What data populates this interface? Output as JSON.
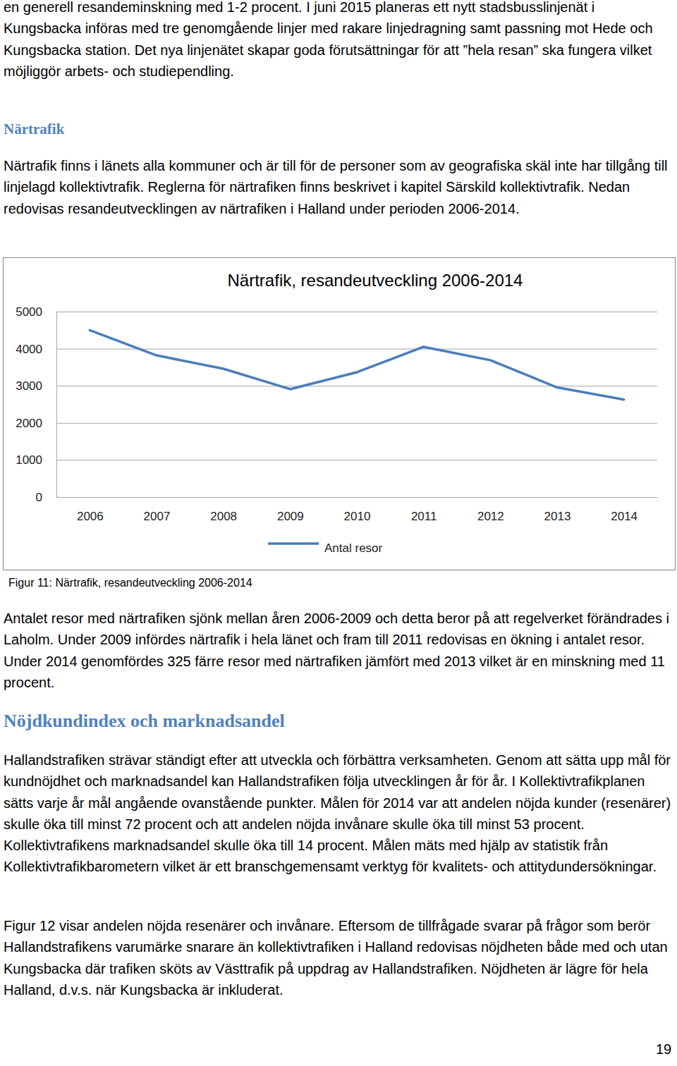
{
  "blocks_before": [
    {
      "text": "en generell resandeminskning med 1-2 procent. I juni 2015 planeras ett nytt stadsbusslinjenät i Kungsbacka införas med tre genomgående linjer med rakare linjedragning samt passning mot Hede och Kungsbacka station. Det nya linjenätet skapar goda förutsättningar för att ”hela resan” ska fungera vilket möjliggör arbets- och studiependling."
    },
    {
      "heading": "Närtrafik"
    },
    {
      "text": "Närtrafik finns i länets alla kommuner och är till för de personer som av geografiska skäl inte har tillgång till linjelagd kollektivtrafik. Reglerna för närtrafiken finns beskrivet i kapitel Särskild kollektivtrafik. Nedan redovisas resandeutvecklingen av närtrafiken i Halland under perioden 2006-2014."
    }
  ],
  "chart_data": {
    "type": "line",
    "title": "Närtrafik, resandeutveckling 2006-2014",
    "categories": [
      "2006",
      "2007",
      "2008",
      "2009",
      "2010",
      "2011",
      "2012",
      "2013",
      "2014"
    ],
    "series": [
      {
        "name": "Antal resor",
        "color": "#4a7ebb",
        "values": [
          4500,
          3820,
          3460,
          2910,
          3365,
          4050,
          3690,
          2955,
          2630
        ]
      }
    ],
    "ylim": [
      0,
      5000
    ],
    "yticks": [
      0,
      1000,
      2000,
      3000,
      4000,
      5000
    ],
    "grid": true,
    "legend": "bottom"
  },
  "caption": "Figur 11: Närtrafik, resandeutveckling 2006-2014",
  "blocks_after": [
    {
      "text": "Antalet resor med närtrafiken sjönk mellan åren 2006-2009 och detta beror på att regelverket förändrades i Laholm. Under 2009 infördes närtrafik i hela länet och fram till 2011 redovisas en ökning i antalet resor. Under 2014 genomfördes 325 färre resor med närtrafiken jämfört med 2013 vilket är en minskning med 11 procent."
    },
    {
      "heading": "Nöjdkundindex och marknadsandel"
    },
    {
      "text": "Hallandstrafiken strävar ständigt efter att utveckla och förbättra verksamheten. Genom att sätta upp mål för kundnöjdhet och marknadsandel kan Hallandstrafiken följa utvecklingen år för år. I Kollektivtrafikplanen sätts varje år mål angående ovanstående punkter. Målen för 2014 var att andelen nöjda kunder (resenärer) skulle öka till minst 72 procent och att andelen nöjda invånare skulle öka till minst 53 procent. Kollektivtrafikens marknadsandel skulle öka till 14 procent. Målen mäts med hjälp av statistik från Kollektivtrafikbarometern vilket är ett branschgemensamt verktyg för kvalitets- och attitydundersökningar."
    },
    {
      "text": "Figur 12 visar andelen nöjda resenärer och invånare. Eftersom de tillfrågade svarar på frågor som berör Hallandstrafikens varumärke snarare än kollektivtrafiken i Halland redovisas nöjdheten både med och utan Kungsbacka där trafiken sköts av Västtrafik på uppdrag av Hallandstrafiken. Nöjdheten är lägre för hela Halland, d.v.s. när Kungsbacka är inkluderat."
    }
  ],
  "page_number": 19
}
